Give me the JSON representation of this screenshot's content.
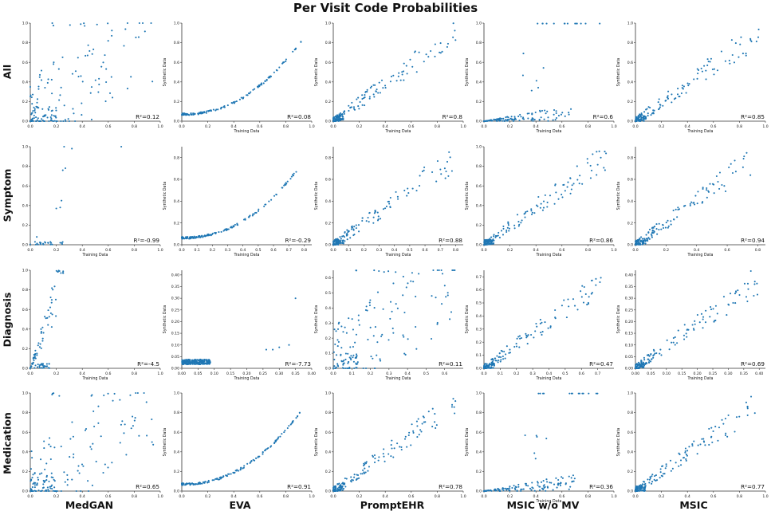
{
  "title": "Per Visit Code Probabilities",
  "rows": [
    "All",
    "Symptom",
    "Diagnosis",
    "Medication"
  ],
  "columns": [
    "MedGAN",
    "EVA",
    "PromptEHR",
    "MSIC w/o MV",
    "MSIC"
  ],
  "colors": {
    "points": "#1f77b4",
    "text": "#111111"
  },
  "chart_data": [
    {
      "row": "All",
      "model": "MedGAN",
      "type": "scatter",
      "xlabel": "",
      "ylabel": "",
      "xlim": [
        0,
        1
      ],
      "ylim": [
        0,
        1
      ],
      "xticks": [
        "0.0",
        "0.2",
        "0.4",
        "0.6",
        "0.8",
        "1.0"
      ],
      "yticks": [
        "0.0",
        "0.2",
        "0.4",
        "0.6",
        "0.8",
        "1.0"
      ],
      "r2": "R$^2$=0.12",
      "r2_label": "R²=0.12",
      "seed": 11,
      "shape": "noisy"
    },
    {
      "row": "All",
      "model": "EVA",
      "type": "scatter",
      "xlabel": "Training Data",
      "ylabel": "Synthetic Data",
      "xlim": [
        0,
        1
      ],
      "ylim": [
        0,
        1
      ],
      "xticks": [
        "0.0",
        "0.2",
        "0.4",
        "0.6",
        "0.8",
        "1.0"
      ],
      "yticks": [
        "0.0",
        "0.2",
        "0.4",
        "0.6",
        "0.8",
        "1.0"
      ],
      "r2_label": "R²=0.08",
      "seed": 12,
      "shape": "curve"
    },
    {
      "row": "All",
      "model": "PromptEHR",
      "type": "scatter",
      "xlabel": "Training Data",
      "ylabel": "Synthetic Data",
      "xlim": [
        0,
        1
      ],
      "ylim": [
        0,
        1
      ],
      "xticks": [
        "0.0",
        "0.2",
        "0.4",
        "0.6",
        "0.8",
        "1.0"
      ],
      "yticks": [
        "0.0",
        "0.2",
        "0.4",
        "0.6",
        "0.8",
        "1.0"
      ],
      "r2_label": "R²=0.8",
      "seed": 13,
      "shape": "diag"
    },
    {
      "row": "All",
      "model": "MSIC w/o MV",
      "type": "scatter",
      "xlabel": "Training Data",
      "ylabel": "Synthetic Data",
      "xlim": [
        0,
        1
      ],
      "ylim": [
        0,
        1
      ],
      "xticks": [
        "0.0",
        "0.2",
        "0.4",
        "0.6",
        "0.8",
        "1.0"
      ],
      "yticks": [
        "0.0",
        "0.2",
        "0.4",
        "0.6",
        "0.8",
        "1.0"
      ],
      "r2_label": "R²=0.6",
      "seed": 14,
      "shape": "flat"
    },
    {
      "row": "All",
      "model": "MSIC",
      "type": "scatter",
      "xlabel": "Training Data",
      "ylabel": "Synthetic Data",
      "xlim": [
        0,
        1
      ],
      "ylim": [
        0,
        1
      ],
      "xticks": [
        "0.0",
        "0.2",
        "0.4",
        "0.6",
        "0.8",
        "1.0"
      ],
      "yticks": [
        "0.0",
        "0.2",
        "0.4",
        "0.6",
        "0.8",
        "1.0"
      ],
      "r2_label": "R²=0.85",
      "seed": 15,
      "shape": "diag"
    },
    {
      "row": "Symptom",
      "model": "MedGAN",
      "type": "scatter",
      "xlabel": "Training Data",
      "ylabel": "",
      "xlim": [
        0,
        1
      ],
      "ylim": [
        0,
        1
      ],
      "xticks": [
        "0.0",
        "0.2",
        "0.4",
        "0.6",
        "0.8",
        "1.0"
      ],
      "yticks": [
        "0.0",
        "0.2",
        "0.4",
        "0.6",
        "0.8",
        "1.0"
      ],
      "r2_label": "R²=-0.99",
      "seed": 21,
      "shape": "sparse"
    },
    {
      "row": "Symptom",
      "model": "EVA",
      "type": "scatter",
      "xlabel": "Training Data",
      "ylabel": "Synthetic Data",
      "xlim": [
        0,
        0.85
      ],
      "ylim": [
        0,
        0.9
      ],
      "xticks": [
        "0.0",
        "0.1",
        "0.2",
        "0.3",
        "0.4",
        "0.5",
        "0.6",
        "0.7",
        "0.8"
      ],
      "yticks": [
        "0.0",
        "0.2",
        "0.4",
        "0.6",
        "0.8"
      ],
      "r2_label": "R²=-0.29",
      "seed": 22,
      "shape": "curve"
    },
    {
      "row": "Symptom",
      "model": "PromptEHR",
      "type": "scatter",
      "xlabel": "Training Data",
      "ylabel": "Synthetic Data",
      "xlim": [
        0,
        0.85
      ],
      "ylim": [
        0,
        0.9
      ],
      "xticks": [
        "0.0",
        "0.1",
        "0.2",
        "0.3",
        "0.4",
        "0.5",
        "0.6",
        "0.7",
        "0.8"
      ],
      "yticks": [
        "0.0",
        "0.2",
        "0.4",
        "0.6",
        "0.8"
      ],
      "r2_label": "R²=0.88",
      "seed": 23,
      "shape": "diag"
    },
    {
      "row": "Symptom",
      "model": "MSIC w/o MV",
      "type": "scatter",
      "xlabel": "Training Data",
      "ylabel": "Synthetic Data",
      "xlim": [
        0,
        1
      ],
      "ylim": [
        0,
        1
      ],
      "xticks": [
        "0.0",
        "0.2",
        "0.4",
        "0.6",
        "0.8",
        "1.0"
      ],
      "yticks": [
        "0.0",
        "0.2",
        "0.4",
        "0.6",
        "0.8",
        "1.0"
      ],
      "r2_label": "R²=0.86",
      "seed": 24,
      "shape": "diag"
    },
    {
      "row": "Symptom",
      "model": "MSIC",
      "type": "scatter",
      "xlabel": "Training Data",
      "ylabel": "Synthetic Data",
      "xlim": [
        0,
        0.85
      ],
      "ylim": [
        0,
        0.9
      ],
      "xticks": [
        "0.0",
        "0.2",
        "0.4",
        "0.6",
        "0.8"
      ],
      "yticks": [
        "0.0",
        "0.2",
        "0.4",
        "0.6",
        "0.8"
      ],
      "r2_label": "R²=0.94",
      "seed": 25,
      "shape": "diag"
    },
    {
      "row": "Diagnosis",
      "model": "MedGAN",
      "type": "scatter",
      "xlabel": "Training Data",
      "ylabel": "",
      "xlim": [
        0,
        1
      ],
      "ylim": [
        0,
        1
      ],
      "xticks": [
        "0.0",
        "0.2",
        "0.4",
        "0.6",
        "0.8",
        "1.0"
      ],
      "yticks": [
        "0.0",
        "0.2",
        "0.4",
        "0.6",
        "0.8",
        "1.0"
      ],
      "r2_label": "R²=-4.5",
      "seed": 31,
      "shape": "steep"
    },
    {
      "row": "Diagnosis",
      "model": "EVA",
      "type": "scatter",
      "xlabel": "Training Data",
      "ylabel": "Synthetic Data",
      "xlim": [
        0,
        0.4
      ],
      "ylim": [
        0,
        0.42
      ],
      "xticks": [
        "0.00",
        "0.05",
        "0.10",
        "0.15",
        "0.20",
        "0.25",
        "0.30",
        "0.35",
        "0.40"
      ],
      "yticks": [
        "0.00",
        "0.05",
        "0.10",
        "0.15",
        "0.20",
        "0.25",
        "0.30",
        "0.35",
        "0.40"
      ],
      "r2_label": "R²=-7.73",
      "seed": 32,
      "shape": "clump"
    },
    {
      "row": "Diagnosis",
      "model": "PromptEHR",
      "type": "scatter",
      "xlabel": "Training Data",
      "ylabel": "Synthetic Data",
      "xlim": [
        0,
        0.7
      ],
      "ylim": [
        0,
        0.65
      ],
      "xticks": [
        "0.0",
        "0.1",
        "0.2",
        "0.3",
        "0.4",
        "0.5",
        "0.6"
      ],
      "yticks": [
        "0.0",
        "0.1",
        "0.2",
        "0.3",
        "0.4",
        "0.5",
        "0.6"
      ],
      "r2_label": "R²=0.11",
      "seed": 33,
      "shape": "noisy"
    },
    {
      "row": "Diagnosis",
      "model": "MSIC w/o MV",
      "type": "scatter",
      "xlabel": "Training Data",
      "ylabel": "Synthetic Data",
      "xlim": [
        0,
        0.8
      ],
      "ylim": [
        0,
        0.75
      ],
      "xticks": [
        "0.0",
        "0.1",
        "0.2",
        "0.3",
        "0.4",
        "0.5",
        "0.6",
        "0.7"
      ],
      "yticks": [
        "0.0",
        "0.1",
        "0.2",
        "0.3",
        "0.4",
        "0.5",
        "0.6",
        "0.7"
      ],
      "r2_label": "R²=0.47",
      "seed": 34,
      "shape": "diag"
    },
    {
      "row": "Diagnosis",
      "model": "MSIC",
      "type": "scatter",
      "xlabel": "Training Data",
      "ylabel": "Synthetic Data",
      "xlim": [
        0,
        0.42
      ],
      "ylim": [
        0,
        0.42
      ],
      "xticks": [
        "0.00",
        "0.05",
        "0.10",
        "0.15",
        "0.20",
        "0.25",
        "0.30",
        "0.35",
        "0.40"
      ],
      "yticks": [
        "0.00",
        "0.05",
        "0.10",
        "0.15",
        "0.20",
        "0.25",
        "0.30",
        "0.35",
        "0.40"
      ],
      "r2_label": "R²=0.69",
      "seed": 35,
      "shape": "diag"
    },
    {
      "row": "Medication",
      "model": "MedGAN",
      "type": "scatter",
      "xlabel": "",
      "ylabel": "",
      "xlim": [
        0,
        1
      ],
      "ylim": [
        0,
        1
      ],
      "xticks": [
        "0.0",
        "0.2",
        "0.4",
        "0.6",
        "0.8",
        "1.0"
      ],
      "yticks": [
        "0.0",
        "0.2",
        "0.4",
        "0.6",
        "0.8",
        "1.0"
      ],
      "r2_label": "R²=0.65",
      "seed": 41,
      "shape": "noisy"
    },
    {
      "row": "Medication",
      "model": "EVA",
      "type": "scatter",
      "xlabel": "",
      "ylabel": "Synthetic Data",
      "xlim": [
        0,
        1
      ],
      "ylim": [
        0,
        1
      ],
      "xticks": [
        "0.0",
        "0.2",
        "0.4",
        "0.6",
        "0.8",
        "1.0"
      ],
      "yticks": [
        "0.0",
        "0.2",
        "0.4",
        "0.6",
        "0.8",
        "1.0"
      ],
      "r2_label": "R²=0.91",
      "seed": 42,
      "shape": "curve"
    },
    {
      "row": "Medication",
      "model": "PromptEHR",
      "type": "scatter",
      "xlabel": "",
      "ylabel": "Synthetic Data",
      "xlim": [
        0,
        1
      ],
      "ylim": [
        0,
        1
      ],
      "xticks": [
        "0.0",
        "0.2",
        "0.4",
        "0.6",
        "0.8",
        "1.0"
      ],
      "yticks": [
        "0.0",
        "0.2",
        "0.4",
        "0.6",
        "0.8",
        "1.0"
      ],
      "r2_label": "R²=0.78",
      "seed": 43,
      "shape": "diag"
    },
    {
      "row": "Medication",
      "model": "MSIC w/o MV",
      "type": "scatter",
      "xlabel": "Training Data",
      "ylabel": "Synthetic Data",
      "xlim": [
        0,
        1
      ],
      "ylim": [
        0,
        1
      ],
      "xticks": [
        "0.0",
        "0.2",
        "0.4",
        "0.6",
        "0.8",
        "1.0"
      ],
      "yticks": [
        "0.0",
        "0.2",
        "0.4",
        "0.6",
        "0.8",
        "1.0"
      ],
      "r2_label": "R²=0.36",
      "seed": 44,
      "shape": "flat"
    },
    {
      "row": "Medication",
      "model": "MSIC",
      "type": "scatter",
      "xlabel": "",
      "ylabel": "Synthetic Data",
      "xlim": [
        0,
        1
      ],
      "ylim": [
        0,
        1
      ],
      "xticks": [
        "0.0",
        "0.2",
        "0.4",
        "0.6",
        "0.8",
        "1.0"
      ],
      "yticks": [
        "0.0",
        "0.2",
        "0.4",
        "0.6",
        "0.8",
        "1.0"
      ],
      "r2_label": "R²=0.77",
      "seed": 45,
      "shape": "diag"
    }
  ]
}
